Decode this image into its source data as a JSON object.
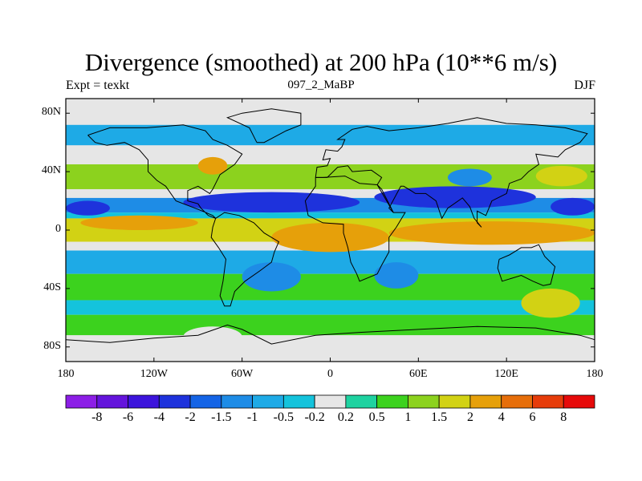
{
  "chart_data": {
    "type": "heatmap",
    "title": "Divergence (smoothed) at 200 hPa (10**6 m/s)",
    "subtitle": "097_2_MaBP",
    "left_label": "Expt = texkt",
    "right_label": "DJF",
    "x_ticks": [
      "180",
      "120W",
      "60W",
      "0",
      "60E",
      "120E",
      "180"
    ],
    "x_tick_values": [
      -180,
      -120,
      -60,
      0,
      60,
      120,
      180
    ],
    "y_ticks": [
      "80N",
      "40N",
      "0",
      "40S",
      "80S"
    ],
    "y_tick_values": [
      80,
      40,
      0,
      -40,
      -80
    ],
    "xlim": [
      -180,
      180
    ],
    "ylim": [
      -90,
      90
    ],
    "levels": [
      "-8",
      "-6",
      "-4",
      "-2",
      "-1.5",
      "-1",
      "-0.5",
      "-0.2",
      "0.2",
      "0.5",
      "1",
      "1.5",
      "2",
      "4",
      "6",
      "8"
    ],
    "level_values": [
      -8,
      -6,
      -4,
      -2,
      -1.5,
      -1,
      -0.5,
      -0.2,
      0.2,
      0.5,
      1,
      1.5,
      2,
      4,
      6,
      8
    ],
    "colors": [
      "#8c1ee6",
      "#6414dc",
      "#3c14dc",
      "#1e32dc",
      "#1464e6",
      "#1e8ce6",
      "#1eaae6",
      "#14c3dc",
      "#e6e6e6",
      "#1ed2a0",
      "#3cd21e",
      "#8cd21e",
      "#d2d214",
      "#e6a00a",
      "#e66e0a",
      "#e63c0a",
      "#e60a0a"
    ],
    "zonal_bands": [
      {
        "lat_min": 72,
        "lat_max": 90,
        "value": 0.0
      },
      {
        "lat_min": 58,
        "lat_max": 72,
        "value": -0.6
      },
      {
        "lat_min": 45,
        "lat_max": 58,
        "value": 0.0
      },
      {
        "lat_min": 28,
        "lat_max": 45,
        "value": 1.2
      },
      {
        "lat_min": 22,
        "lat_max": 28,
        "value": 0.0
      },
      {
        "lat_min": 12,
        "lat_max": 22,
        "value": -1.2
      },
      {
        "lat_min": 8,
        "lat_max": 12,
        "value": -0.4
      },
      {
        "lat_min": -8,
        "lat_max": 8,
        "value": 1.8
      },
      {
        "lat_min": -14,
        "lat_max": -8,
        "value": 0.0
      },
      {
        "lat_min": -30,
        "lat_max": -14,
        "value": -0.7
      },
      {
        "lat_min": -48,
        "lat_max": -30,
        "value": 0.8
      },
      {
        "lat_min": -58,
        "lat_max": -48,
        "value": -0.4
      },
      {
        "lat_min": -72,
        "lat_max": -58,
        "value": 0.6
      },
      {
        "lat_min": -90,
        "lat_max": -72,
        "value": 0.0
      }
    ],
    "features": [
      {
        "lon_min": -180,
        "lon_max": -150,
        "lat_min": 10,
        "lat_max": 20,
        "value": -2.5
      },
      {
        "lon_min": -100,
        "lon_max": 20,
        "lat_min": 12,
        "lat_max": 26,
        "value": -2.5
      },
      {
        "lon_min": 30,
        "lon_max": 140,
        "lat_min": 15,
        "lat_max": 30,
        "value": -2.5
      },
      {
        "lon_min": 150,
        "lon_max": 180,
        "lat_min": 10,
        "lat_max": 22,
        "value": -2.5
      },
      {
        "lon_min": -170,
        "lon_max": -90,
        "lat_min": 0,
        "lat_max": 10,
        "value": 3
      },
      {
        "lon_min": -40,
        "lon_max": 40,
        "lat_min": -15,
        "lat_max": 5,
        "value": 3
      },
      {
        "lon_min": 40,
        "lon_max": 180,
        "lat_min": -10,
        "lat_max": 6,
        "value": 3
      },
      {
        "lon_min": -90,
        "lon_max": -70,
        "lat_min": 38,
        "lat_max": 50,
        "value": 3
      },
      {
        "lon_min": 140,
        "lon_max": 175,
        "lat_min": 30,
        "lat_max": 44,
        "value": 1.8
      },
      {
        "lon_min": 80,
        "lon_max": 110,
        "lat_min": 30,
        "lat_max": 42,
        "value": -1.2
      },
      {
        "lon_min": -60,
        "lon_max": -20,
        "lat_min": -42,
        "lat_max": -22,
        "value": -1.2
      },
      {
        "lon_min": 30,
        "lon_max": 60,
        "lat_min": -40,
        "lat_max": -22,
        "value": -1.2
      },
      {
        "lon_min": 130,
        "lon_max": 170,
        "lat_min": -60,
        "lat_max": -40,
        "value": 1.8
      },
      {
        "lon_min": -100,
        "lon_max": -60,
        "lat_min": -80,
        "lat_max": -66,
        "value": 0.0
      }
    ]
  }
}
